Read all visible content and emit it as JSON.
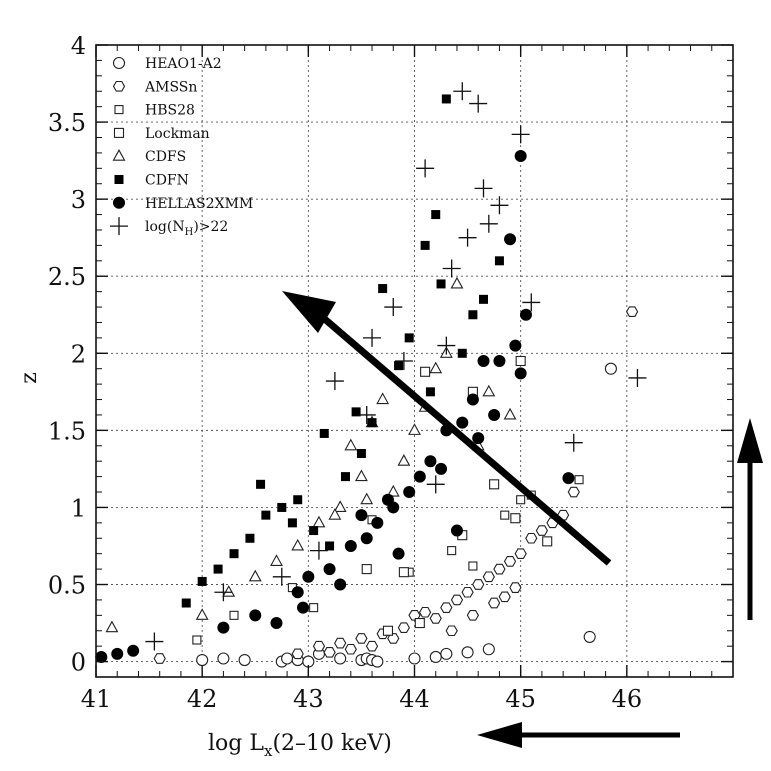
{
  "chart_data": {
    "type": "scatter",
    "title": "",
    "xlabel": "log L",
    "xlabel_sub": "x",
    "xlabel_suffix": "(2–10 keV)",
    "ylabel": "z",
    "xlim": [
      41,
      47
    ],
    "ylim": [
      -0.1,
      4
    ],
    "xticks": [
      41,
      42,
      43,
      44,
      45,
      46
    ],
    "xtick_labels": [
      "41",
      "42",
      "43",
      "44",
      "45",
      "46"
    ],
    "yticks": [
      0,
      0.5,
      1,
      1.5,
      2,
      2.5,
      3,
      3.5,
      4
    ],
    "ytick_labels": [
      "0",
      "0.5",
      "1",
      "1.5",
      "2",
      "2.5",
      "3",
      "3.5",
      "4"
    ],
    "grid": true,
    "legend_position": "top-left",
    "legend": [
      {
        "label": "HEAO1-A2",
        "marker": "open-circle"
      },
      {
        "label": "AMSSn",
        "marker": "open-hexagon"
      },
      {
        "label": "HBS28",
        "marker": "open-square-small"
      },
      {
        "label": "Lockman",
        "marker": "open-square"
      },
      {
        "label": "CDFS",
        "marker": "open-triangle"
      },
      {
        "label": "CDFN",
        "marker": "filled-square"
      },
      {
        "label": "HELLAS2XMM",
        "marker": "filled-circle"
      },
      {
        "label": "log(N",
        "label_sub": "H",
        "label_suffix": ")>22",
        "marker": "plus"
      }
    ],
    "series": [
      {
        "name": "HEAO1-A2",
        "marker": "open-circle",
        "x": [
          42.0,
          42.2,
          42.4,
          42.75,
          42.8,
          42.9,
          43.0,
          43.1,
          43.3,
          43.5,
          43.55,
          43.6,
          43.65,
          44.0,
          44.2,
          44.3,
          44.5,
          44.7,
          45.65,
          45.85
        ],
        "y": [
          0.01,
          0.02,
          0.01,
          0.0,
          0.02,
          0.01,
          0.0,
          0.05,
          0.02,
          0.01,
          0.02,
          0.01,
          0.0,
          0.02,
          0.03,
          0.05,
          0.06,
          0.08,
          0.16,
          1.9
        ]
      },
      {
        "name": "AMSSn",
        "marker": "open-hexagon",
        "x": [
          41.6,
          42.9,
          43.1,
          43.3,
          43.5,
          43.7,
          43.9,
          44.0,
          44.1,
          44.2,
          44.3,
          44.4,
          44.5,
          44.6,
          44.7,
          44.8,
          44.9,
          45.0,
          45.1,
          45.2,
          45.3,
          45.4,
          45.5,
          46.05,
          44.35,
          44.55,
          44.75,
          44.85,
          44.95,
          43.8,
          43.6,
          43.4,
          43.2
        ],
        "y": [
          0.02,
          0.05,
          0.1,
          0.12,
          0.15,
          0.18,
          0.22,
          0.3,
          0.32,
          0.28,
          0.35,
          0.4,
          0.45,
          0.5,
          0.55,
          0.6,
          0.65,
          0.7,
          0.8,
          0.85,
          0.9,
          0.95,
          1.1,
          2.27,
          0.2,
          0.3,
          0.38,
          0.42,
          0.48,
          0.15,
          0.1,
          0.08,
          0.06
        ]
      },
      {
        "name": "HBS28",
        "marker": "open-square-small",
        "x": [
          41.95,
          42.3,
          42.85,
          43.05,
          43.6,
          43.95,
          44.35,
          44.55,
          44.85,
          45.0,
          45.1,
          45.55
        ],
        "y": [
          0.14,
          0.3,
          0.48,
          0.35,
          0.92,
          0.58,
          0.72,
          0.62,
          0.95,
          1.05,
          1.08,
          1.18
        ]
      },
      {
        "name": "Lockman",
        "marker": "open-square",
        "x": [
          43.55,
          43.9,
          44.1,
          44.55,
          44.75,
          44.95,
          45.0,
          45.25,
          44.45,
          44.05,
          43.75
        ],
        "y": [
          0.6,
          0.58,
          1.88,
          1.75,
          1.15,
          0.93,
          1.95,
          0.78,
          0.82,
          0.25,
          0.2
        ]
      },
      {
        "name": "CDFS",
        "marker": "open-triangle",
        "x": [
          41.15,
          42.0,
          42.25,
          42.5,
          42.7,
          42.9,
          43.1,
          43.3,
          43.4,
          43.5,
          43.6,
          43.7,
          43.8,
          43.9,
          44.0,
          44.1,
          44.2,
          44.3,
          44.4,
          44.6,
          44.7,
          44.9,
          43.25,
          43.55
        ],
        "y": [
          0.22,
          0.3,
          0.45,
          0.55,
          0.65,
          0.75,
          0.9,
          1.0,
          1.4,
          1.2,
          1.55,
          1.7,
          1.1,
          1.3,
          1.5,
          1.65,
          1.9,
          2.0,
          2.45,
          1.4,
          1.75,
          1.6,
          0.95,
          1.05
        ]
      },
      {
        "name": "CDFN",
        "marker": "filled-square",
        "x": [
          41.85,
          42.0,
          42.15,
          42.3,
          42.45,
          42.6,
          42.75,
          42.9,
          43.05,
          43.2,
          43.35,
          43.5,
          43.6,
          43.7,
          43.85,
          43.95,
          44.1,
          44.2,
          44.3,
          44.45,
          44.65,
          44.8,
          44.25,
          43.15,
          42.55,
          42.85,
          43.45,
          43.75,
          44.55,
          44.15
        ],
        "y": [
          0.38,
          0.52,
          0.6,
          0.7,
          0.8,
          0.95,
          1.0,
          1.05,
          0.85,
          0.75,
          1.2,
          1.35,
          1.55,
          2.42,
          1.92,
          2.1,
          2.7,
          2.9,
          3.65,
          2.0,
          2.35,
          2.6,
          2.45,
          1.48,
          1.15,
          0.9,
          1.62,
          1.05,
          2.25,
          1.75
        ]
      },
      {
        "name": "HELLAS2XMM",
        "marker": "filled-circle",
        "x": [
          41.05,
          41.2,
          41.35,
          42.2,
          42.5,
          42.7,
          42.9,
          43.0,
          43.2,
          43.4,
          43.55,
          43.65,
          43.8,
          43.95,
          44.05,
          44.15,
          44.3,
          44.45,
          44.55,
          44.65,
          44.8,
          44.9,
          45.0,
          45.05,
          45.45,
          43.5,
          43.75,
          44.25,
          44.6,
          44.75,
          43.3,
          42.95,
          43.85,
          44.4,
          45.0,
          44.95
        ],
        "y": [
          0.03,
          0.05,
          0.07,
          0.22,
          0.3,
          0.25,
          0.45,
          0.55,
          0.6,
          0.75,
          0.8,
          0.9,
          1.0,
          1.1,
          1.2,
          1.3,
          1.5,
          1.55,
          1.7,
          1.95,
          1.95,
          2.74,
          3.28,
          2.25,
          1.19,
          0.95,
          1.05,
          1.25,
          1.45,
          1.6,
          0.5,
          0.35,
          0.7,
          0.85,
          1.87,
          2.05
        ]
      },
      {
        "name": "log(NH)>22",
        "marker": "plus",
        "x": [
          41.55,
          42.2,
          42.75,
          43.1,
          43.25,
          43.55,
          43.8,
          44.1,
          44.3,
          44.35,
          44.45,
          44.6,
          44.65,
          44.7,
          44.8,
          45.0,
          45.1,
          45.5,
          46.1,
          44.5,
          43.6,
          43.9,
          44.2
        ],
        "y": [
          0.13,
          0.45,
          0.55,
          0.72,
          1.82,
          1.6,
          2.3,
          3.2,
          2.05,
          2.55,
          3.7,
          3.62,
          3.07,
          2.84,
          2.96,
          3.42,
          2.33,
          1.42,
          1.84,
          2.75,
          2.1,
          1.95,
          1.15
        ]
      }
    ]
  }
}
